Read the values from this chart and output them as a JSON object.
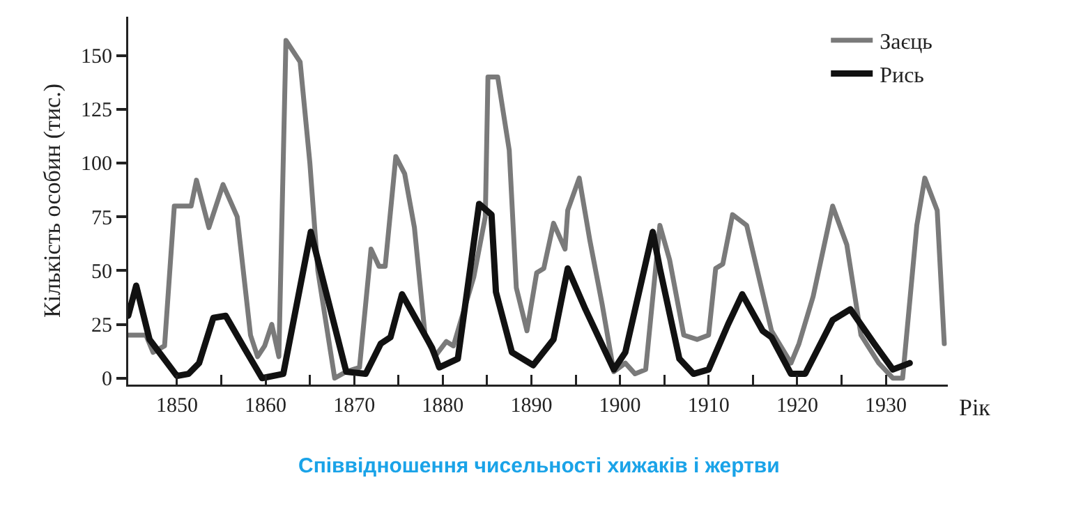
{
  "chart_data": {
    "type": "line",
    "title": "Співвідношення чисельності хижаків і жертви",
    "xlabel": "Рік",
    "ylabel": "Кількість особин (тис.)",
    "xlim": [
      1844.5,
      1937
    ],
    "xticks": [
      1850,
      {
        "value": 1855,
        "label": null
      },
      1860,
      {
        "value": 1865,
        "label": null
      },
      1870,
      {
        "value": 1875,
        "label": null
      },
      1880,
      {
        "value": 1885,
        "label": null
      },
      1890,
      {
        "value": 1895,
        "label": null
      },
      1900,
      {
        "value": 1905,
        "label": null
      },
      1910,
      {
        "value": 1915,
        "label": null
      },
      1920,
      {
        "value": 1925,
        "label": null
      },
      1930
    ],
    "ylim": [
      -3,
      168
    ],
    "yticks": [
      0,
      25,
      50,
      75,
      100,
      125,
      150
    ],
    "grid": false,
    "legend": "top right",
    "marker": "none",
    "line_style": "solid",
    "series": [
      {
        "name": "Заєць",
        "color": "#7a7a7a",
        "x": [
          1844.5,
          1846.5,
          1847.3,
          1848.6,
          1849.7,
          1851.6,
          1852.2,
          1853.6,
          1855.2,
          1856.8,
          1858.3,
          1859.1,
          1859.9,
          1860.7,
          1861.5,
          1862.3,
          1863.9,
          1865.0,
          1865.9,
          1867.8,
          1869.1,
          1870.6,
          1871.9,
          1872.8,
          1873.5,
          1874.7,
          1875.7,
          1876.8,
          1878.0,
          1879.1,
          1880.4,
          1881.2,
          1883.5,
          1884.8,
          1885.1,
          1886.2,
          1887.5,
          1888.3,
          1889.5,
          1890.6,
          1891.4,
          1892.5,
          1893.8,
          1894.1,
          1895.4,
          1896.6,
          1898.0,
          1899.3,
          1900.6,
          1901.7,
          1902.9,
          1904.5,
          1905.6,
          1907.2,
          1908.7,
          1910.0,
          1910.8,
          1911.6,
          1912.7,
          1914.3,
          1917.1,
          1919.3,
          1920.2,
          1921.8,
          1924.0,
          1925.6,
          1927.2,
          1929.2,
          1930.8,
          1931.9,
          1933.5,
          1934.4,
          1935.8,
          1936.6
        ],
        "values": [
          20,
          20,
          12,
          15,
          80,
          80,
          92,
          70,
          90,
          75,
          20,
          10,
          15,
          25,
          10,
          157,
          147,
          100,
          50,
          0,
          3,
          5,
          60,
          52,
          52,
          103,
          95,
          70,
          20,
          10,
          17,
          15,
          47,
          75,
          140,
          140,
          106,
          42,
          22,
          49,
          51,
          72,
          60,
          78,
          93,
          64,
          34,
          3,
          7,
          2,
          4,
          71,
          55,
          20,
          18,
          20,
          51,
          53,
          76,
          71,
          22,
          7,
          16,
          38,
          80,
          62,
          20,
          7,
          0,
          0,
          71,
          93,
          78,
          16
        ]
      },
      {
        "name": "Рись",
        "color": "#111111",
        "x": [
          1844.5,
          1845.4,
          1846.9,
          1850.0,
          1851.3,
          1852.5,
          1854.1,
          1855.5,
          1857.6,
          1859.6,
          1862.0,
          1865.1,
          1869.1,
          1871.3,
          1873.0,
          1874.1,
          1875.4,
          1878.8,
          1879.6,
          1881.7,
          1884.1,
          1885.5,
          1886.0,
          1887.8,
          1890.2,
          1892.5,
          1894.1,
          1896.1,
          1899.3,
          1900.6,
          1903.7,
          1904.5,
          1906.7,
          1908.3,
          1910.0,
          1912.2,
          1913.8,
          1916.1,
          1917.1,
          1919.3,
          1920.9,
          1924.0,
          1926.0,
          1928.7,
          1930.8,
          1932.7
        ],
        "values": [
          29,
          43,
          18,
          1,
          2,
          7,
          28,
          29,
          14,
          0,
          2,
          68,
          3,
          2,
          16,
          19,
          39,
          14,
          5,
          9,
          81,
          76,
          40,
          12,
          6,
          18,
          51,
          32,
          4,
          12,
          68,
          51,
          9,
          2,
          4,
          25,
          39,
          22,
          19,
          2,
          2,
          27,
          32,
          16,
          4,
          7
        ]
      }
    ]
  }
}
